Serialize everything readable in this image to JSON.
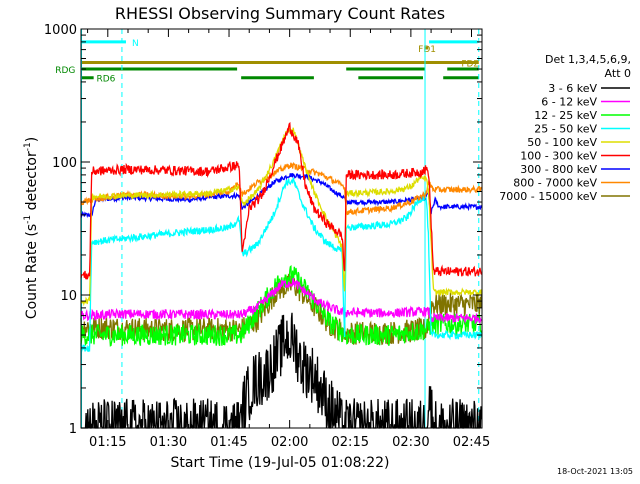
{
  "chart_data": {
    "type": "line",
    "title": "RHESSI Observing Summary Count Rates",
    "xlabel": "Start Time (19-Jul-05 01:08:22)",
    "ylabel_main": "Count Rate (s",
    "ylabel_sup": "-1",
    "ylabel_tail": " detector",
    "ylabel_end": ")",
    "yscale": "log",
    "ylim": [
      1,
      1000
    ],
    "xlim_minutes": [
      68.37,
      167.6
    ],
    "yticks": [
      {
        "v": 1,
        "label": "1"
      },
      {
        "v": 10,
        "label": "10"
      },
      {
        "v": 100,
        "label": "100"
      },
      {
        "v": 1000,
        "label": "1000"
      }
    ],
    "xticks": [
      {
        "m": 75,
        "label": "01:15"
      },
      {
        "m": 90,
        "label": "01:30"
      },
      {
        "m": 105,
        "label": "01:45"
      },
      {
        "m": 120,
        "label": "02:00"
      },
      {
        "m": 135,
        "label": "02:15"
      },
      {
        "m": 150,
        "label": "02:30"
      },
      {
        "m": 165,
        "label": "02:45"
      }
    ],
    "legend_header": [
      "Det 1,3,4,5,6,9,",
      "Att 0"
    ],
    "footer_date": "18-Oct-2021 13:05",
    "night_lines_minutes": [
      68.5,
      78.5,
      153.5,
      166.8
    ],
    "bars": [
      {
        "label": "N",
        "color": "#00ffff",
        "y": 800,
        "segments": [
          [
            68.5,
            79.5
          ],
          [
            154.5,
            166.5
          ]
        ],
        "label_at": 81
      },
      {
        "label": "FD1",
        "color": "#a08f00",
        "y": 720,
        "segments": [
          [
            153.5,
            154.3
          ]
        ],
        "label_at": 151.8
      },
      {
        "label": "FDZ",
        "color": "#a08f00",
        "y": 560,
        "segments": [
          [
            68.5,
            166.8
          ]
        ],
        "label_at": 162.5
      },
      {
        "label": "RDG",
        "color": "#008800",
        "y": 500,
        "segments": [
          [
            68.5,
            107
          ],
          [
            134,
            153.5
          ],
          [
            159,
            166.8
          ]
        ],
        "label_at": 62
      },
      {
        "label": "RD6",
        "color": "#008800",
        "y": 430,
        "segments": [
          [
            68.5,
            71.5
          ],
          [
            108,
            126
          ],
          [
            137,
            153
          ],
          [
            158,
            166.8
          ]
        ],
        "label_at": 72.2
      }
    ],
    "series": [
      {
        "name": "3 - 6 keV",
        "color": "#000000",
        "noise": 0.5,
        "points": [
          [
            68.4,
            1
          ],
          [
            108,
            1
          ],
          [
            108.6,
            1.5
          ],
          [
            111,
            2.2
          ],
          [
            114,
            2.5
          ],
          [
            117,
            3.5
          ],
          [
            119,
            4.8
          ],
          [
            121,
            4.5
          ],
          [
            123,
            3
          ],
          [
            126,
            2.5
          ],
          [
            129,
            1.6
          ],
          [
            132,
            1.2
          ],
          [
            133,
            1
          ],
          [
            152,
            1
          ],
          [
            154,
            1
          ],
          [
            154.5,
            1.8
          ],
          [
            155.5,
            1.1
          ],
          [
            156,
            1
          ],
          [
            167.5,
            1
          ]
        ]
      },
      {
        "name": "6 - 12 keV",
        "color": "#ff00ff",
        "noise": 0.08,
        "points": [
          [
            68.4,
            7
          ],
          [
            78,
            7.2
          ],
          [
            108,
            7.1
          ],
          [
            112,
            8
          ],
          [
            118,
            12
          ],
          [
            121,
            12.5
          ],
          [
            124,
            10.5
          ],
          [
            128,
            8.5
          ],
          [
            133,
            7.4
          ],
          [
            145,
            7.3
          ],
          [
            153,
            7.5
          ],
          [
            154.4,
            7.5
          ],
          [
            155,
            6.7
          ],
          [
            167.5,
            6.7
          ]
        ]
      },
      {
        "name": "12 - 25 keV",
        "color": "#00ff00",
        "noise": 0.18,
        "points": [
          [
            68.4,
            5
          ],
          [
            108,
            5
          ],
          [
            112,
            7.5
          ],
          [
            118,
            13.5
          ],
          [
            121,
            14
          ],
          [
            125,
            10
          ],
          [
            130,
            6.2
          ],
          [
            134,
            5
          ],
          [
            145,
            5
          ],
          [
            154,
            5.5
          ],
          [
            155,
            6
          ],
          [
            167.5,
            6
          ]
        ]
      },
      {
        "name": "25 - 50 keV",
        "color": "#00ffff",
        "noise": 0.06,
        "points": [
          [
            68.4,
            4
          ],
          [
            70.5,
            4
          ],
          [
            71,
            25
          ],
          [
            95,
            30
          ],
          [
            105,
            32
          ],
          [
            107.5,
            37
          ],
          [
            108.3,
            20
          ],
          [
            112,
            24
          ],
          [
            116,
            40
          ],
          [
            119,
            70
          ],
          [
            121,
            72
          ],
          [
            123,
            50
          ],
          [
            126,
            32
          ],
          [
            129,
            25
          ],
          [
            133,
            21
          ],
          [
            133.6,
            4.5
          ],
          [
            134,
            32
          ],
          [
            145,
            34
          ],
          [
            149,
            38
          ],
          [
            152,
            52
          ],
          [
            153.8,
            55
          ],
          [
            154.3,
            30
          ],
          [
            155,
            5
          ],
          [
            167.5,
            5
          ]
        ]
      },
      {
        "name": "50 - 100 keV",
        "color": "#dddd00",
        "noise": 0.05,
        "points": [
          [
            68.4,
            9
          ],
          [
            70.5,
            9
          ],
          [
            71,
            55
          ],
          [
            80,
            56
          ],
          [
            100,
            58
          ],
          [
            107.5,
            64
          ],
          [
            108.3,
            48
          ],
          [
            112,
            60
          ],
          [
            116,
            100
          ],
          [
            119,
            165
          ],
          [
            121,
            175
          ],
          [
            123,
            110
          ],
          [
            126,
            60
          ],
          [
            129,
            38
          ],
          [
            133,
            23
          ],
          [
            133.6,
            10
          ],
          [
            134,
            58
          ],
          [
            145,
            60
          ],
          [
            150,
            65
          ],
          [
            152,
            75
          ],
          [
            153.8,
            75
          ],
          [
            154.4,
            60
          ],
          [
            155.6,
            10.5
          ],
          [
            167.5,
            10.5
          ]
        ]
      },
      {
        "name": "100 - 300 keV",
        "color": "#ff0000",
        "noise": 0.08,
        "points": [
          [
            68.4,
            14
          ],
          [
            70.5,
            14
          ],
          [
            71,
            85
          ],
          [
            80,
            88
          ],
          [
            100,
            85
          ],
          [
            107.5,
            95
          ],
          [
            108.3,
            20
          ],
          [
            110,
            45
          ],
          [
            113,
            55
          ],
          [
            117,
            110
          ],
          [
            120,
            185
          ],
          [
            122,
            140
          ],
          [
            124,
            65
          ],
          [
            126,
            45
          ],
          [
            129,
            35
          ],
          [
            133,
            28
          ],
          [
            133.6,
            14
          ],
          [
            134,
            80
          ],
          [
            145,
            80
          ],
          [
            152,
            84
          ],
          [
            153.8,
            88
          ],
          [
            154.4,
            85
          ],
          [
            155.6,
            15
          ],
          [
            167.5,
            15
          ]
        ]
      },
      {
        "name": "300 - 800 keV",
        "color": "#0000ff",
        "noise": 0.04,
        "points": [
          [
            68.4,
            40
          ],
          [
            71,
            40
          ],
          [
            72,
            52
          ],
          [
            80,
            54
          ],
          [
            95,
            52
          ],
          [
            102,
            55
          ],
          [
            107.5,
            56
          ],
          [
            108.3,
            45
          ],
          [
            112,
            55
          ],
          [
            116,
            70
          ],
          [
            120,
            80
          ],
          [
            124,
            78
          ],
          [
            128,
            70
          ],
          [
            131,
            60
          ],
          [
            133.5,
            54
          ],
          [
            134,
            50
          ],
          [
            145,
            50
          ],
          [
            150,
            52
          ],
          [
            153.8,
            54
          ],
          [
            154.3,
            60
          ],
          [
            154.8,
            40
          ],
          [
            156,
            52
          ],
          [
            157,
            46
          ],
          [
            167.5,
            46
          ]
        ]
      },
      {
        "name": "800 - 7000 keV",
        "color": "#ff8800",
        "noise": 0.05,
        "points": [
          [
            68.4,
            50
          ],
          [
            71,
            52
          ],
          [
            80,
            57
          ],
          [
            95,
            55
          ],
          [
            105,
            60
          ],
          [
            107.5,
            70
          ],
          [
            108.3,
            57
          ],
          [
            112,
            70
          ],
          [
            117,
            85
          ],
          [
            120,
            95
          ],
          [
            124,
            88
          ],
          [
            128,
            80
          ],
          [
            131,
            72
          ],
          [
            133.6,
            65
          ],
          [
            134,
            42
          ],
          [
            145,
            45
          ],
          [
            150,
            50
          ],
          [
            153.8,
            58
          ],
          [
            154.4,
            70
          ],
          [
            155.6,
            62
          ],
          [
            167.5,
            62
          ]
        ]
      },
      {
        "name": "7000 - 15000 keV",
        "color": "#807400",
        "noise": 0.2,
        "points": [
          [
            68.4,
            5.8
          ],
          [
            85,
            5.5
          ],
          [
            108,
            5.5
          ],
          [
            112,
            6.5
          ],
          [
            117,
            11
          ],
          [
            121,
            12
          ],
          [
            125,
            9
          ],
          [
            130,
            6
          ],
          [
            134,
            5.2
          ],
          [
            145,
            5.2
          ],
          [
            154,
            5.5
          ],
          [
            155,
            8.5
          ],
          [
            167.5,
            8.5
          ]
        ]
      }
    ]
  }
}
